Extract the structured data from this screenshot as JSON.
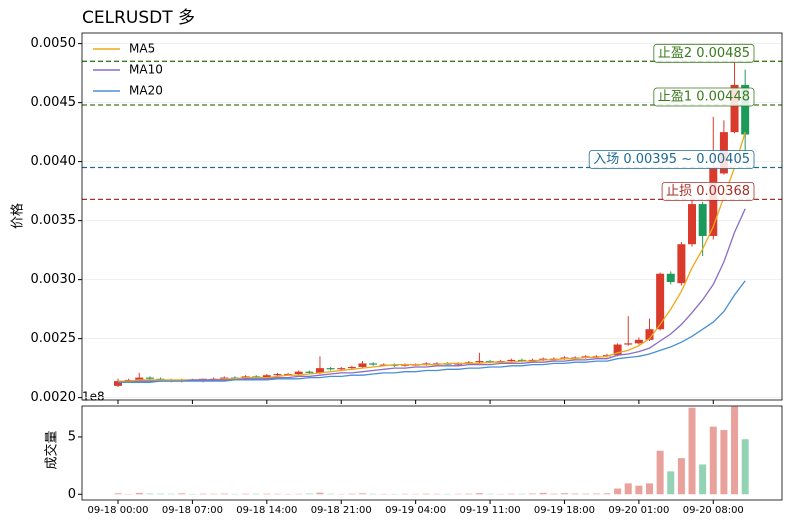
{
  "chart_data": {
    "type": "candlestick",
    "title": "CELRUSDT 多",
    "y_label": "价格",
    "volume_label": "成交量",
    "volume_offset": "1e8",
    "legend": "upper left",
    "grid": true,
    "categories": [
      "09-18 00:00",
      null,
      null,
      null,
      null,
      null,
      null,
      "09-18 07:00",
      null,
      null,
      null,
      null,
      null,
      null,
      "09-18 14:00",
      null,
      null,
      null,
      null,
      null,
      null,
      "09-18 21:00",
      null,
      null,
      null,
      null,
      null,
      null,
      "09-19 04:00",
      null,
      null,
      null,
      null,
      null,
      null,
      "09-19 11:00",
      null,
      null,
      null,
      null,
      null,
      null,
      "09-19 18:00",
      null,
      null,
      null,
      null,
      null,
      null,
      "09-20 01:00",
      null,
      null,
      null,
      null,
      null,
      null,
      "09-20 08:00",
      null,
      null,
      null
    ],
    "open": [
      0.0021,
      0.00214,
      0.00215,
      0.00217,
      0.00216,
      0.00215,
      0.00214,
      0.00215,
      0.00214,
      0.00216,
      0.00216,
      0.00217,
      0.00216,
      0.00218,
      0.00217,
      0.00219,
      0.0022,
      0.0022,
      0.00222,
      0.00221,
      0.00225,
      0.00224,
      0.00225,
      0.00226,
      0.00229,
      0.00228,
      0.00228,
      0.00227,
      0.00228,
      0.00228,
      0.00229,
      0.00229,
      0.00228,
      0.00229,
      0.0023,
      0.00231,
      0.0023,
      0.00231,
      0.00232,
      0.00231,
      0.00232,
      0.00233,
      0.00233,
      0.00234,
      0.00234,
      0.00235,
      0.00235,
      0.00236,
      0.00245,
      0.00246,
      0.00249,
      0.00258,
      0.00305,
      0.00297,
      0.0033,
      0.00364,
      0.00337,
      0.0039,
      0.00425,
      0.00465
    ],
    "high": [
      0.00216,
      0.00216,
      0.00221,
      0.00218,
      0.00217,
      0.00216,
      0.00216,
      0.00216,
      0.00216,
      0.00217,
      0.00218,
      0.00218,
      0.00219,
      0.00219,
      0.0022,
      0.00221,
      0.00221,
      0.00223,
      0.00223,
      0.00235,
      0.00226,
      0.00226,
      0.00227,
      0.00231,
      0.0023,
      0.00229,
      0.00229,
      0.00229,
      0.00229,
      0.0023,
      0.0023,
      0.0023,
      0.0023,
      0.00231,
      0.00238,
      0.00232,
      0.00232,
      0.00233,
      0.00233,
      0.00233,
      0.00234,
      0.00234,
      0.00235,
      0.00235,
      0.00236,
      0.00236,
      0.00237,
      0.00246,
      0.00269,
      0.00251,
      0.00267,
      0.00306,
      0.00307,
      0.00332,
      0.00368,
      0.00366,
      0.00438,
      0.00435,
      0.0049,
      0.00478
    ],
    "low": [
      0.00209,
      0.00213,
      0.00214,
      0.00215,
      0.00214,
      0.00213,
      0.00213,
      0.00214,
      0.00213,
      0.00215,
      0.00215,
      0.00216,
      0.00215,
      0.00217,
      0.00216,
      0.00218,
      0.00219,
      0.00219,
      0.0022,
      0.0022,
      0.00223,
      0.00223,
      0.00224,
      0.00225,
      0.00227,
      0.00227,
      0.00226,
      0.00226,
      0.00227,
      0.00227,
      0.00228,
      0.00228,
      0.00227,
      0.00228,
      0.00229,
      0.00229,
      0.00229,
      0.0023,
      0.0023,
      0.0023,
      0.00231,
      0.00232,
      0.00232,
      0.00233,
      0.00233,
      0.00234,
      0.00234,
      0.00235,
      0.00244,
      0.00245,
      0.00248,
      0.00257,
      0.00296,
      0.00295,
      0.00328,
      0.0032,
      0.00334,
      0.00389,
      0.00424,
      0.00408
    ],
    "close": [
      0.00214,
      0.00215,
      0.00217,
      0.00216,
      0.00215,
      0.00214,
      0.00215,
      0.00214,
      0.00216,
      0.00216,
      0.00217,
      0.00216,
      0.00218,
      0.00217,
      0.00219,
      0.0022,
      0.0022,
      0.00222,
      0.00221,
      0.00225,
      0.00224,
      0.00225,
      0.00226,
      0.00229,
      0.00228,
      0.00228,
      0.00227,
      0.00228,
      0.00228,
      0.00229,
      0.00229,
      0.00228,
      0.00229,
      0.0023,
      0.00231,
      0.0023,
      0.00231,
      0.00232,
      0.00231,
      0.00232,
      0.00233,
      0.00233,
      0.00234,
      0.00234,
      0.00235,
      0.00235,
      0.00236,
      0.00245,
      0.00246,
      0.00249,
      0.00258,
      0.00305,
      0.00298,
      0.0033,
      0.00364,
      0.00337,
      0.00395,
      0.00425,
      0.00465,
      0.00423
    ],
    "volume": [
      0.08,
      0.03,
      0.12,
      0.06,
      0.05,
      0.04,
      0.08,
      0.03,
      0.05,
      0.04,
      0.06,
      0.03,
      0.05,
      0.04,
      0.05,
      0.04,
      0.03,
      0.04,
      0.06,
      0.14,
      0.04,
      0.03,
      0.05,
      0.08,
      0.04,
      0.03,
      0.03,
      0.04,
      0.03,
      0.05,
      0.04,
      0.03,
      0.04,
      0.05,
      0.1,
      0.04,
      0.03,
      0.05,
      0.04,
      0.06,
      0.12,
      0.05,
      0.09,
      0.06,
      0.05,
      0.06,
      0.08,
      0.5,
      0.95,
      0.75,
      0.95,
      3.8,
      2.0,
      3.15,
      7.55,
      2.6,
      5.9,
      5.6,
      7.65,
      4.8
    ],
    "up_color": "#d93a2b",
    "down_color": "#1b9a5c",
    "volume_up_color": "#e8a19b",
    "volume_down_color": "#93d2b2",
    "series": [
      {
        "name": "MA5",
        "color": "#f0a818",
        "values": [
          0.00214,
          0.00214,
          0.00215,
          0.00215,
          0.00215,
          0.00215,
          0.00215,
          0.00215,
          0.00215,
          0.00215,
          0.00216,
          0.00216,
          0.00217,
          0.00217,
          0.00217,
          0.00218,
          0.00219,
          0.00219,
          0.0022,
          0.00221,
          0.00222,
          0.00223,
          0.00224,
          0.00225,
          0.00226,
          0.00227,
          0.00228,
          0.00228,
          0.00228,
          0.00228,
          0.00228,
          0.00229,
          0.00229,
          0.00229,
          0.00229,
          0.0023,
          0.0023,
          0.0023,
          0.00231,
          0.00231,
          0.00232,
          0.00232,
          0.00233,
          0.00233,
          0.00234,
          0.00234,
          0.00235,
          0.00238,
          0.0024,
          0.00244,
          0.0025,
          0.00262,
          0.00275,
          0.0029,
          0.0031,
          0.00326,
          0.00345,
          0.0037,
          0.00395,
          0.00425
        ]
      },
      {
        "name": "MA10",
        "color": "#8a6cc9",
        "values": [
          0.00213,
          0.00213,
          0.00214,
          0.00214,
          0.00214,
          0.00214,
          0.00214,
          0.00215,
          0.00215,
          0.00215,
          0.00215,
          0.00215,
          0.00216,
          0.00216,
          0.00216,
          0.00217,
          0.00217,
          0.00218,
          0.00218,
          0.00219,
          0.0022,
          0.00221,
          0.00221,
          0.00222,
          0.00223,
          0.00224,
          0.00225,
          0.00225,
          0.00226,
          0.00226,
          0.00227,
          0.00227,
          0.00227,
          0.00228,
          0.00228,
          0.00228,
          0.00229,
          0.00229,
          0.00229,
          0.0023,
          0.0023,
          0.00231,
          0.00231,
          0.00232,
          0.00232,
          0.00233,
          0.00233,
          0.00236,
          0.00237,
          0.00239,
          0.00242,
          0.00248,
          0.00254,
          0.00262,
          0.00272,
          0.00283,
          0.00296,
          0.00315,
          0.0034,
          0.0036
        ]
      },
      {
        "name": "MA20",
        "color": "#4a8fd4",
        "values": [
          0.00213,
          0.00213,
          0.00213,
          0.00213,
          0.00214,
          0.00214,
          0.00214,
          0.00214,
          0.00214,
          0.00214,
          0.00214,
          0.00215,
          0.00215,
          0.00215,
          0.00215,
          0.00216,
          0.00216,
          0.00216,
          0.00217,
          0.00217,
          0.00218,
          0.00218,
          0.00219,
          0.00219,
          0.0022,
          0.00221,
          0.00221,
          0.00222,
          0.00222,
          0.00223,
          0.00223,
          0.00224,
          0.00224,
          0.00225,
          0.00225,
          0.00226,
          0.00226,
          0.00227,
          0.00227,
          0.00228,
          0.00228,
          0.00229,
          0.00229,
          0.0023,
          0.0023,
          0.00231,
          0.00231,
          0.00233,
          0.00234,
          0.00235,
          0.00237,
          0.0024,
          0.00243,
          0.00247,
          0.00252,
          0.00258,
          0.00264,
          0.00273,
          0.00287,
          0.00299
        ]
      }
    ],
    "levels": [
      {
        "label": "止盈2 0.00485",
        "value": 0.00485,
        "color": "#3a7a1e"
      },
      {
        "label": "止盈1 0.00448",
        "value": 0.00448,
        "color": "#3a7a1e"
      },
      {
        "label": "入场 0.00395 ~ 0.00405",
        "value": 0.00395,
        "color": "#1f6a94"
      },
      {
        "label": "止损 0.00368",
        "value": 0.00368,
        "color": "#a8302a"
      }
    ],
    "ylim": [
      0.00198,
      0.00509
    ],
    "yticks": [
      {
        "value": 0.002,
        "label": "0.0020"
      },
      {
        "value": 0.0025,
        "label": "0.0025"
      },
      {
        "value": 0.003,
        "label": "0.0030"
      },
      {
        "value": 0.0035,
        "label": "0.0035"
      },
      {
        "value": 0.004,
        "label": "0.0040"
      },
      {
        "value": 0.0045,
        "label": "0.0045"
      },
      {
        "value": 0.005,
        "label": "0.0050"
      }
    ],
    "volume_ylim": [
      -0.5,
      7.7
    ],
    "volume_yticks": [
      0,
      5
    ]
  }
}
